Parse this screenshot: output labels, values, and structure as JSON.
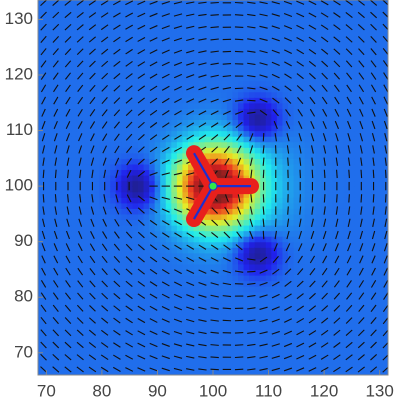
{
  "chart_data": {
    "type": "field",
    "x": [
      100,
      86.5,
      108,
      108
    ],
    "y": [
      100,
      100,
      112,
      88
    ],
    "charges": [
      -0.5,
      0.5,
      0.5,
      0.5
    ],
    "xlim": [
      68.5,
      131.5
    ],
    "ylim": [
      66,
      133.5
    ],
    "xticks": [
      70,
      80,
      90,
      100,
      110,
      120,
      130
    ],
    "yticks": [
      70,
      80,
      90,
      100,
      110,
      120,
      130
    ]
  }
}
